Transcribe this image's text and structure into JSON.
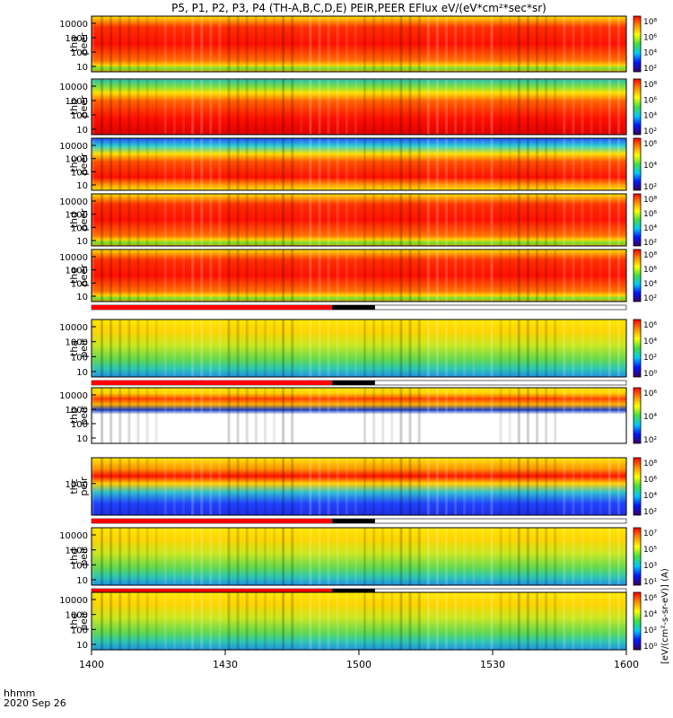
{
  "chart_data": {
    "type": "heatmap",
    "title": "P5, P1, P2, P3, P4 (TH-A,B,C,D,E) PEIR,PEER EFlux eV/(eV*cm²*sec*sr)",
    "x_ticks": [
      "1400",
      "1430",
      "1500",
      "1530",
      "1600"
    ],
    "x_corner_label": "hhmm",
    "date_label": "2020 Sep 26",
    "colorbar_label": "[eV/(cm²-s-sr-eV)] (A)",
    "color_scale": [
      "#3a0060",
      "#0018ff",
      "#00c8ff",
      "#40e040",
      "#ffff00",
      "#ff9000",
      "#ff0000"
    ],
    "panels": [
      {
        "probe": "tha",
        "species": "peer",
        "yticks": [
          "10000",
          "1000",
          "100",
          "10"
        ],
        "cticks": [
          "10⁸",
          "10⁶",
          "10⁴",
          "10²"
        ],
        "state_bar": false
      },
      {
        "probe": "thb",
        "species": "peer",
        "yticks": [
          "10000",
          "1000",
          "100",
          "10"
        ],
        "cticks": [
          "10⁸",
          "10⁶",
          "10⁴",
          "10²"
        ],
        "state_bar": false
      },
      {
        "probe": "thc",
        "species": "peer",
        "yticks": [
          "10000",
          "1000",
          "100",
          "10"
        ],
        "cticks": [
          "10⁶",
          "10⁴",
          "10²"
        ],
        "state_bar": false
      },
      {
        "probe": "thd",
        "species": "peer",
        "yticks": [
          "10000",
          "1000",
          "100",
          "10"
        ],
        "cticks": [
          "10⁸",
          "10⁶",
          "10⁴",
          "10²"
        ],
        "state_bar": false
      },
      {
        "probe": "the",
        "species": "peer",
        "yticks": [
          "10000",
          "1000",
          "100",
          "10"
        ],
        "cticks": [
          "10⁸",
          "10⁶",
          "10⁴",
          "10²"
        ],
        "state_bar": true
      },
      {
        "probe": "tha",
        "species": "peir",
        "yticks": [
          "10000",
          "1000",
          "100",
          "10"
        ],
        "cticks": [
          "10⁶",
          "10⁴",
          "10²",
          "10⁰"
        ],
        "state_bar": true
      },
      {
        "probe": "thb",
        "species": "peir",
        "yticks": [
          "10000",
          "1000",
          "100",
          "10"
        ],
        "cticks": [
          "10⁶",
          "10⁴",
          "10²"
        ],
        "state_bar": false
      },
      {
        "probe": "thc",
        "species": "peir",
        "yticks": [
          "1000"
        ],
        "cticks": [
          "10⁸",
          "10⁶",
          "10⁴",
          "10²"
        ],
        "state_bar": true
      },
      {
        "probe": "thd",
        "species": "peir",
        "yticks": [
          "10000",
          "1000",
          "100",
          "10"
        ],
        "cticks": [
          "10⁷",
          "10⁵",
          "10³",
          "10¹"
        ],
        "state_bar": true
      },
      {
        "probe": "the",
        "species": "peir",
        "yticks": [
          "10000",
          "1000",
          "100",
          "10"
        ],
        "cticks": [
          "10⁶",
          "10⁴",
          "10²",
          "10⁰"
        ],
        "state_bar": false
      }
    ]
  }
}
